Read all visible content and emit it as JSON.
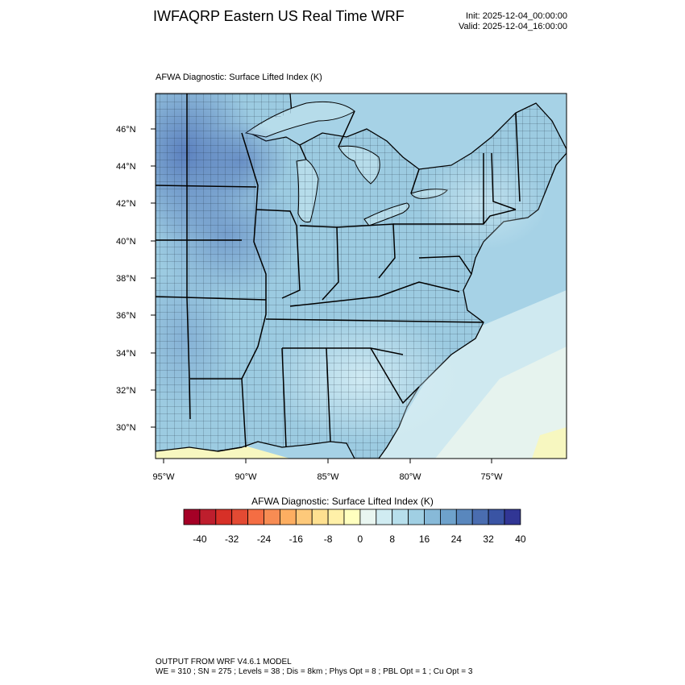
{
  "title": "IWFAQRP Eastern US Real Time WRF",
  "init": "Init: 2025-12-04_00:00:00",
  "valid": "Valid: 2025-12-04_16:00:00",
  "plot_title": "AFWA Diagnostic: Surface Lifted Index   (K)",
  "colorbar": {
    "title": "AFWA Diagnostic: Surface Lifted Index  (K)",
    "tick_labels": [
      "-40",
      "-32",
      "-24",
      "-16",
      "-8",
      "0",
      "8",
      "16",
      "24",
      "32",
      "40"
    ],
    "colors": [
      "#a50026",
      "#be1e2d",
      "#d73027",
      "#e34a33",
      "#f46d43",
      "#f78c53",
      "#fdae61",
      "#fdc97a",
      "#fee090",
      "#fff0a8",
      "#ffffbf",
      "#e9f6f1",
      "#d0ecf2",
      "#b7dfec",
      "#a0cfe3",
      "#87b9d8",
      "#6ea2cc",
      "#5987bd",
      "#4a6db0",
      "#3a54a4",
      "#313695"
    ]
  },
  "map": {
    "lat_labels": [
      "46°N",
      "44°N",
      "42°N",
      "40°N",
      "38°N",
      "36°N",
      "34°N",
      "32°N",
      "30°N"
    ],
    "lon_labels": [
      "95°W",
      "90°W",
      "85°W",
      "80°W",
      "75°W"
    ]
  },
  "footer": {
    "line1": "OUTPUT FROM WRF V4.6.1 MODEL",
    "line2": "WE = 310 ; SN = 275 ; Levels = 38 ; Dis = 8km ; Phys Opt = 8 ; PBL Opt = 1 ; Cu Opt = 3"
  }
}
